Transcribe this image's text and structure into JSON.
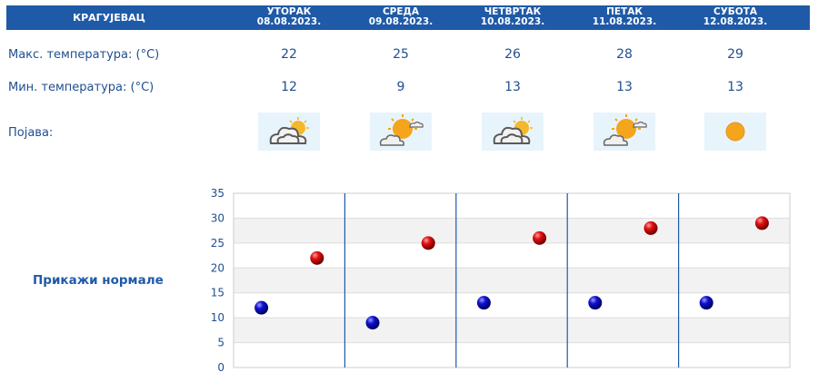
{
  "header": {
    "city": "КРАГУЈЕВАЦ",
    "days": [
      {
        "name": "УТОРАК",
        "date": "08.08.2023."
      },
      {
        "name": "СРЕДА",
        "date": "09.08.2023."
      },
      {
        "name": "ЧЕТВРТАК",
        "date": "10.08.2023."
      },
      {
        "name": "ПЕТАК",
        "date": "11.08.2023."
      },
      {
        "name": "СУБОТА",
        "date": "12.08.2023."
      }
    ]
  },
  "rows": {
    "max_label": "Макс. температура: (°C)",
    "min_label": "Мин. температура: (°C)",
    "phenomenon_label": "Појава:"
  },
  "max_temps": [
    "22",
    "25",
    "26",
    "28",
    "29"
  ],
  "min_temps": [
    "12",
    "9",
    "13",
    "13",
    "13"
  ],
  "icons": [
    "sun-behind-clouds-icon",
    "partly-cloudy-icon",
    "sun-behind-clouds-icon",
    "partly-cloudy-icon",
    "sun-icon"
  ],
  "normals_link": "Прикажи нормале",
  "colors": {
    "header_bg": "#1f5aa8",
    "text": "#1f4f8f",
    "max_marker": "#cc0000",
    "min_marker": "#0000b0",
    "icon_bg": "#e8f4fb"
  },
  "chart_data": {
    "type": "scatter",
    "ylim": [
      0,
      35
    ],
    "yticks": [
      "0",
      "5",
      "10",
      "15",
      "20",
      "25",
      "30",
      "35"
    ],
    "grid": true,
    "series": [
      {
        "values": [
          12,
          9,
          13,
          13,
          13
        ]
      },
      {
        "values": [
          22,
          25,
          26,
          28,
          29
        ]
      }
    ]
  }
}
